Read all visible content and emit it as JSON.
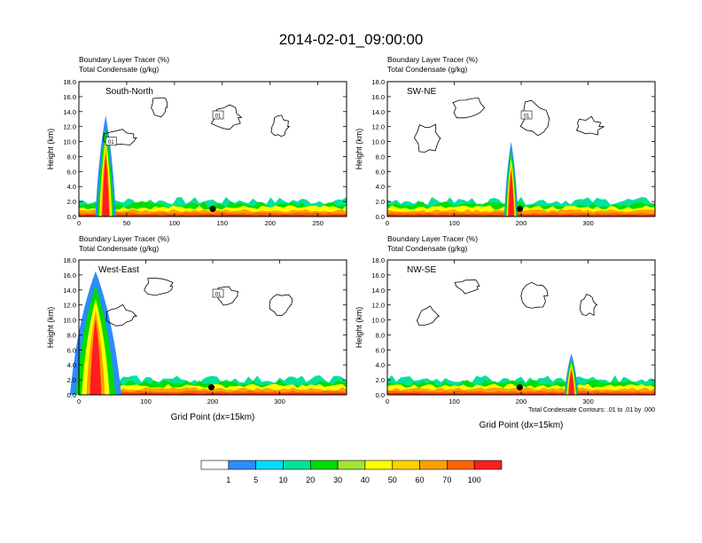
{
  "title": "2014-02-01_09:00:00",
  "chart_data": {
    "type": "heatmap",
    "title": "2014-02-01_09:00:00",
    "panel_header": {
      "line1": "Boundary Layer Tracer    (%)",
      "line2": "Total Condensate    (g/kg)"
    },
    "ylabel": "Height (km)",
    "xlabel": "Grid Point (dx=15km)",
    "y_ticks": [
      "0.0",
      "2.0",
      "4.0",
      "6.0",
      "8.0",
      "10.0",
      "12.0",
      "14.0",
      "16.0",
      "18.0"
    ],
    "ylim": [
      0,
      18
    ],
    "contour_note": "Total Condensate Contours: .01 to .01 by .000",
    "colorbar": {
      "levels": [
        "1",
        "5",
        "10",
        "20",
        "30",
        "40",
        "50",
        "60",
        "70",
        "100"
      ],
      "colors": [
        "#ffffff",
        "#2a8cff",
        "#00dcff",
        "#00e29a",
        "#00dc00",
        "#a0e632",
        "#ffff00",
        "#ffd200",
        "#ffa000",
        "#ff6400",
        "#ff1e1e"
      ]
    },
    "panels": [
      {
        "name": "South-North",
        "xlim": [
          0,
          280
        ],
        "x_ticks": [
          "0",
          "50",
          "100",
          "150",
          "200",
          "250"
        ],
        "contour_labels": [
          "01",
          "01"
        ],
        "plume_x": [
          22,
          34
        ],
        "plume_top_km": 13.5,
        "marker_x": 140,
        "marker_km": 1.0
      },
      {
        "name": "SW-NE",
        "xlim": [
          0,
          400
        ],
        "x_ticks": [
          "0",
          "100",
          "200",
          "300"
        ],
        "contour_labels": [
          "01"
        ],
        "plume_x": [
          180,
          190
        ],
        "plume_top_km": 10.0,
        "marker_x": 198,
        "marker_km": 1.0
      },
      {
        "name": "West-East",
        "xlim": [
          0,
          400
        ],
        "x_ticks": [
          "0",
          "100",
          "200",
          "300"
        ],
        "contour_labels": [
          "01"
        ],
        "plume_x": [
          0,
          50
        ],
        "plume_top_km": 16.5,
        "marker_x": 198,
        "marker_km": 1.0
      },
      {
        "name": "NW-SE",
        "xlim": [
          0,
          400
        ],
        "x_ticks": [
          "0",
          "100",
          "200",
          "300"
        ],
        "contour_labels": [],
        "plume_x": [
          270,
          280
        ],
        "plume_top_km": 5.5,
        "marker_x": 198,
        "marker_km": 1.0
      }
    ]
  }
}
